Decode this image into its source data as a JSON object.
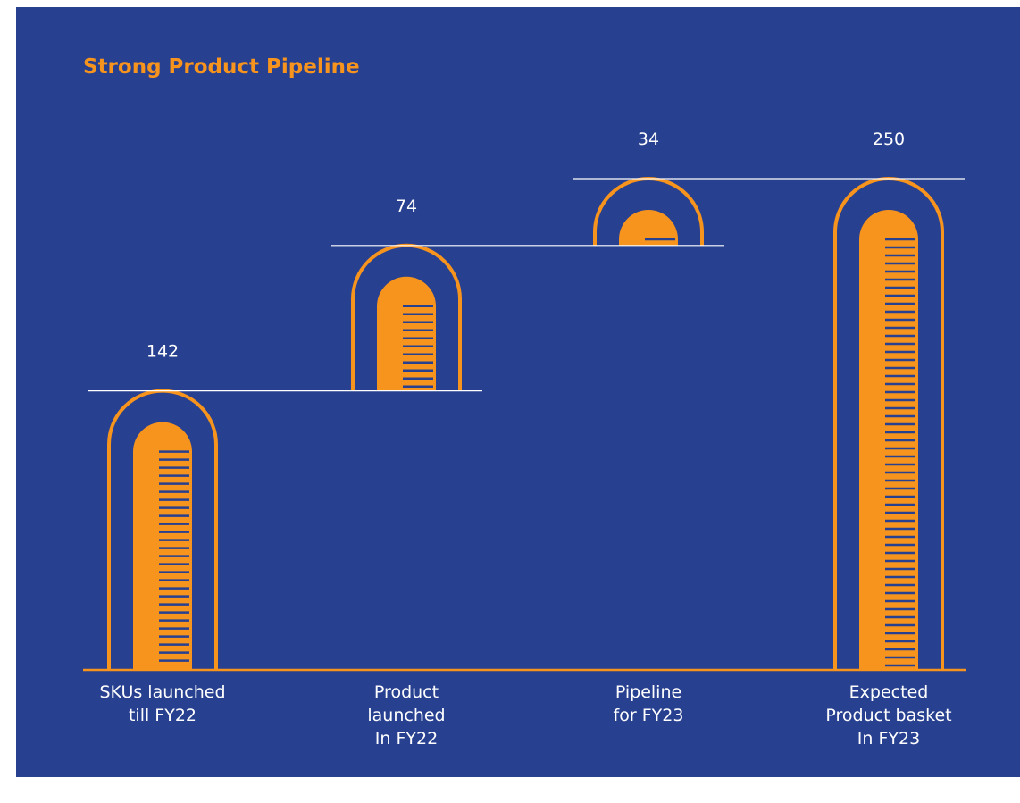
{
  "chart_data": {
    "type": "waterfall",
    "title": "Strong Product Pipeline",
    "categories": [
      "SKUs launched\ntill FY22",
      "Product\nlaunched\nIn FY22",
      "Pipeline\nfor FY23",
      "Expected\nProduct basket\nIn FY23"
    ],
    "values": [
      142,
      74,
      34,
      250
    ],
    "color": "#f7941d"
  }
}
